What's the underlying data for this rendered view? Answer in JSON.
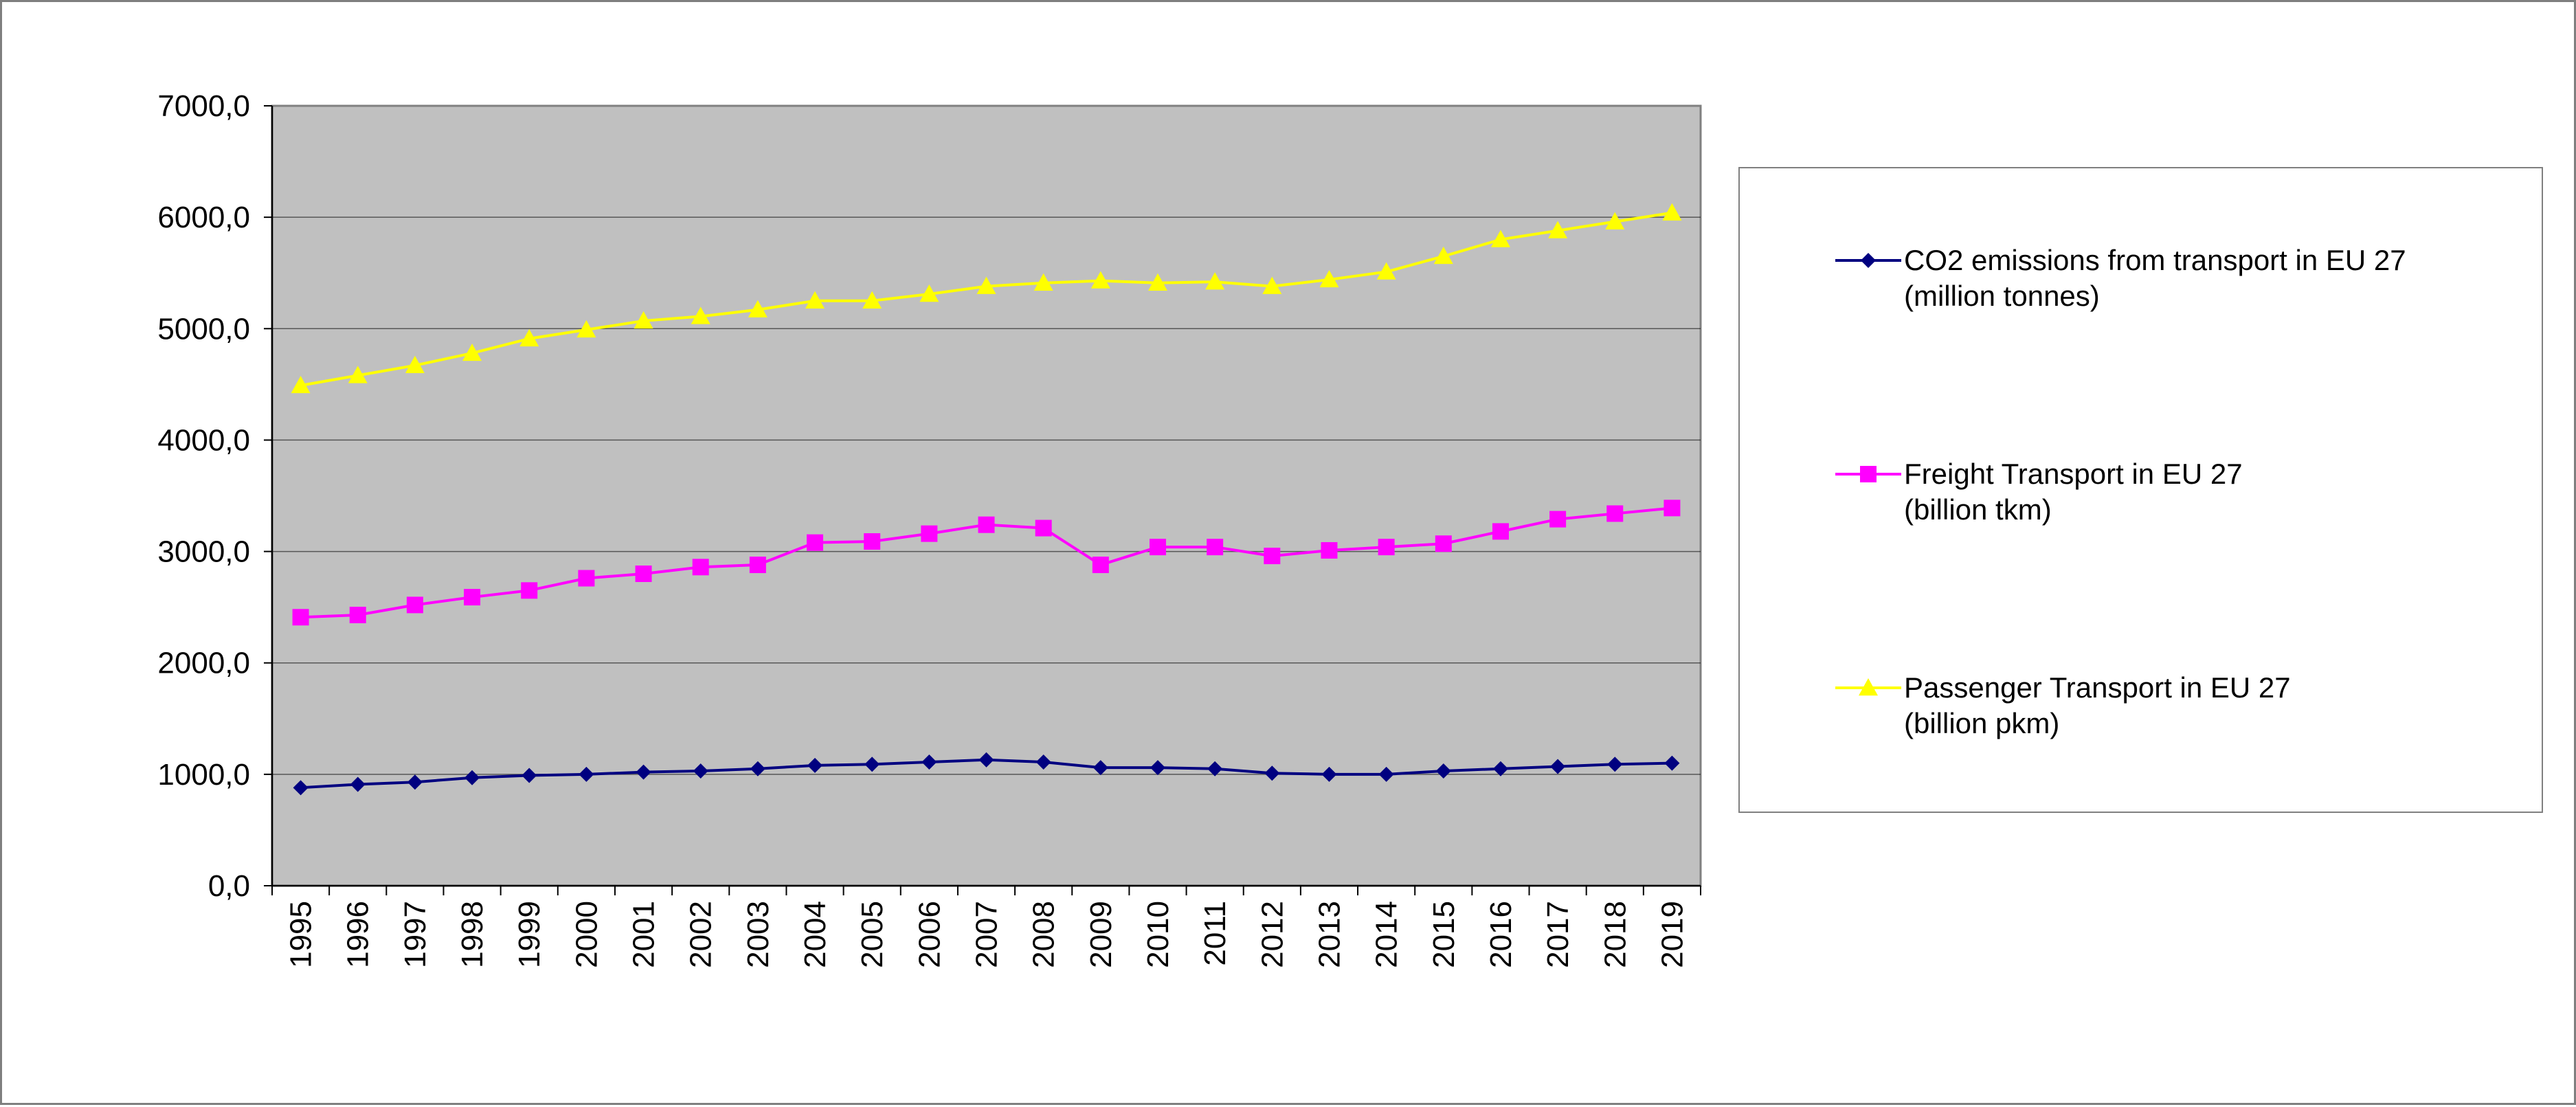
{
  "chart_data": {
    "type": "line",
    "title": "",
    "xlabel": "",
    "ylabel": "",
    "categories": [
      "1995",
      "1996",
      "1997",
      "1998",
      "1999",
      "2000",
      "2001",
      "2002",
      "2003",
      "2004",
      "2005",
      "2006",
      "2007",
      "2008",
      "2009",
      "2010",
      "2011",
      "2012",
      "2013",
      "2014",
      "2015",
      "2016",
      "2017",
      "2018",
      "2019"
    ],
    "ylim": [
      0,
      7000
    ],
    "y_ticks": [
      "0,0",
      "1000,0",
      "2000,0",
      "3000,0",
      "4000,0",
      "5000,0",
      "6000,0",
      "7000,0"
    ],
    "grid": true,
    "plot_background": "#c0c0c0",
    "legend_position": "right",
    "series": [
      {
        "name_line1": "CO2 emissions from transport in EU 27",
        "name_line2": "(million tonnes)",
        "color": "#000080",
        "marker": "diamond",
        "values": [
          880,
          910,
          930,
          970,
          990,
          1000,
          1020,
          1030,
          1050,
          1080,
          1090,
          1110,
          1130,
          1110,
          1060,
          1060,
          1050,
          1010,
          1000,
          1000,
          1030,
          1050,
          1070,
          1090,
          1100
        ]
      },
      {
        "name_line1": "Freight Transport in EU 27",
        "name_line2": "(billion tkm)",
        "color": "#ff00ff",
        "marker": "square",
        "values": [
          2410,
          2430,
          2520,
          2590,
          2650,
          2760,
          2800,
          2860,
          2880,
          3080,
          3090,
          3160,
          3240,
          3210,
          2880,
          3040,
          3040,
          2960,
          3010,
          3040,
          3070,
          3180,
          3290,
          3340,
          3390
        ]
      },
      {
        "name_line1": "Passenger Transport in EU 27",
        "name_line2": "(billion pkm)",
        "color": "#ffff00",
        "marker": "triangle",
        "values": [
          4490,
          4580,
          4670,
          4780,
          4910,
          4990,
          5070,
          5110,
          5170,
          5250,
          5250,
          5310,
          5380,
          5410,
          5430,
          5410,
          5420,
          5380,
          5440,
          5510,
          5650,
          5800,
          5880,
          5960,
          6040
        ]
      }
    ]
  }
}
